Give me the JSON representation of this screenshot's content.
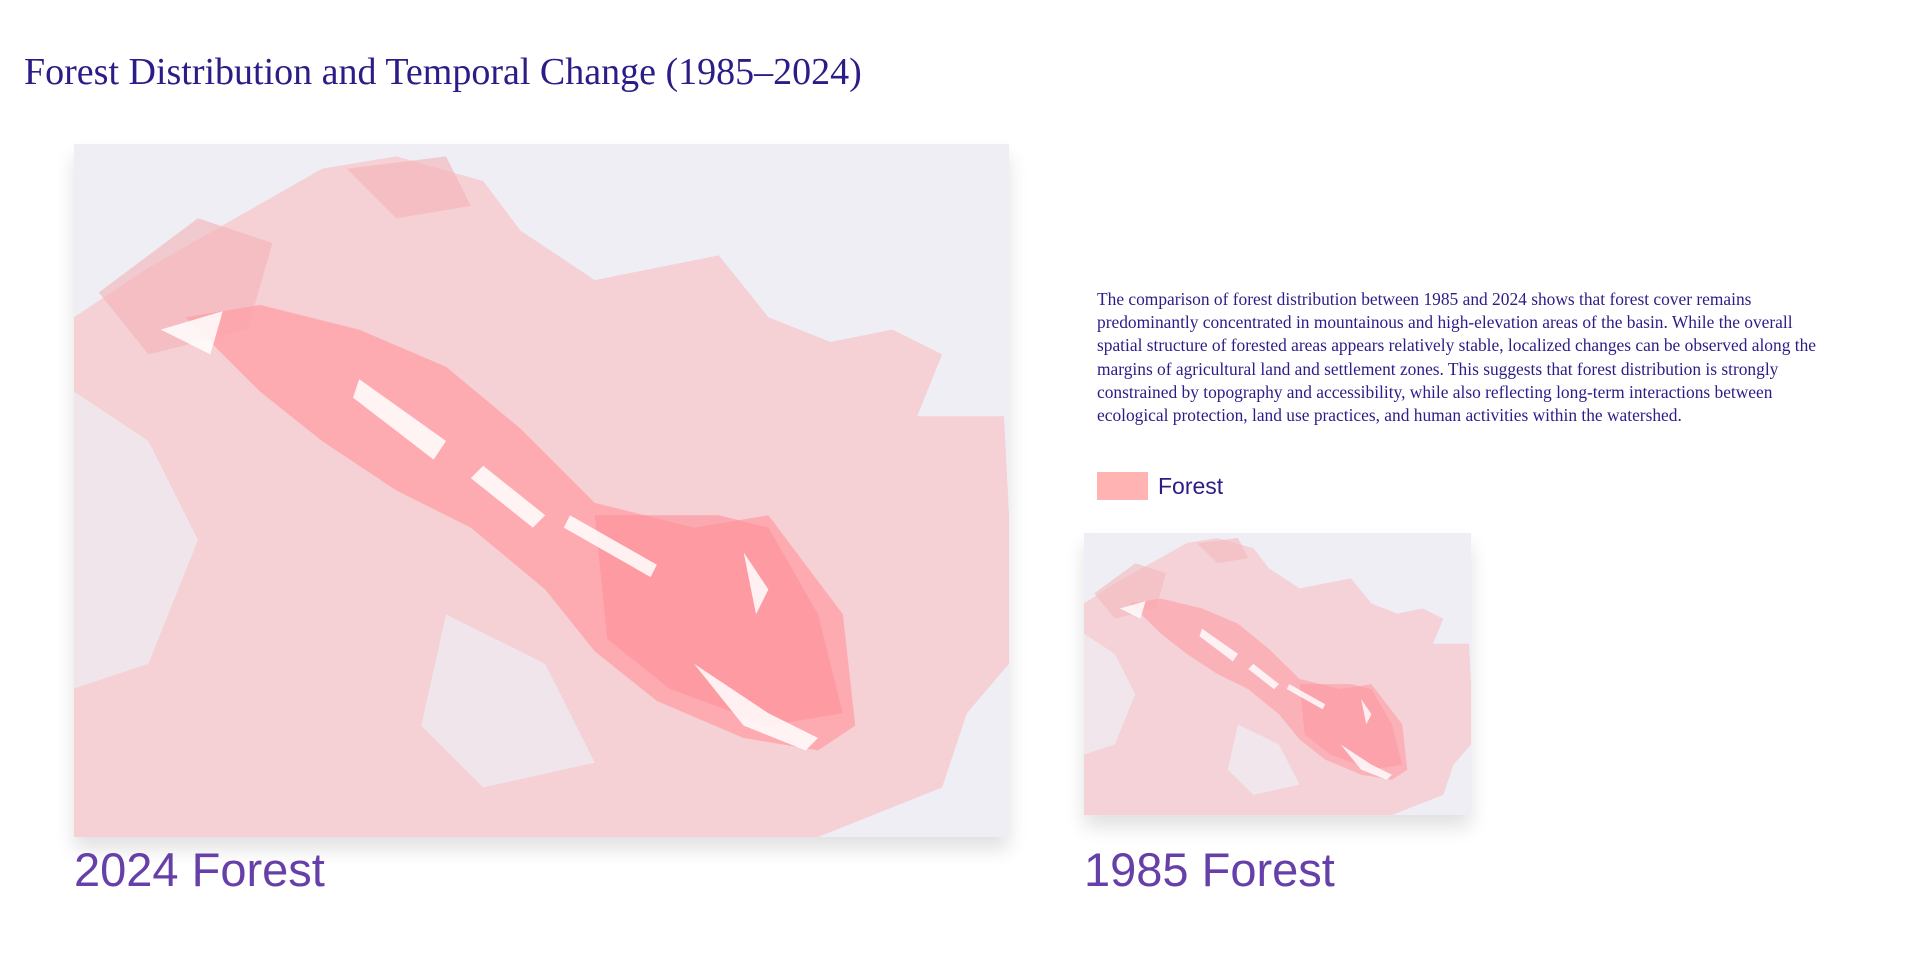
{
  "title": "Forest Distribution and Temporal Change (1985–2024)",
  "description": "The comparison of forest distribution between 1985 and 2024 shows that forest cover remains predominantly concentrated in mountainous and high-elevation areas of the basin. While the overall spatial structure of forested areas appears relatively stable, localized changes can be observed along the margins of agricultural land and settlement zones. This suggests that forest distribution is strongly constrained by topography and accessibility, while also reflecting long-term interactions between ecological protection, land use practices, and human activities within the watershed.",
  "legend": {
    "label": "Forest",
    "color": "#ffb3b3"
  },
  "maps": [
    {
      "caption": "2024 Forest"
    },
    {
      "caption": "1985 Forest"
    }
  ]
}
